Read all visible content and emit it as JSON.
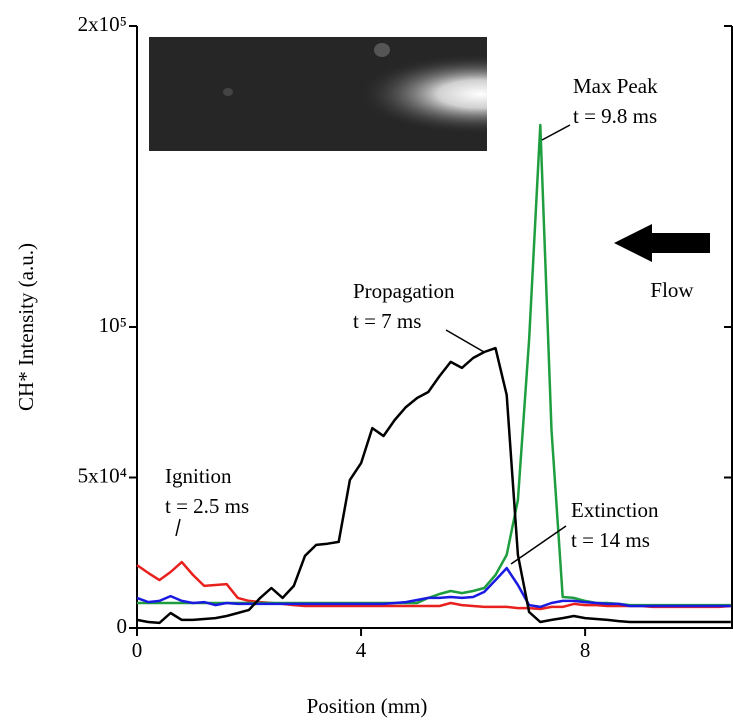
{
  "chart_data": {
    "type": "line",
    "x_label": "Position (mm)",
    "y_label": "CH* Intensity (a.u.)",
    "x": [
      0,
      0.2,
      0.4,
      0.6,
      0.8,
      1.0,
      1.2,
      1.4,
      1.6,
      1.8,
      2.0,
      2.2,
      2.4,
      2.6,
      2.8,
      3.0,
      3.2,
      3.4,
      3.6,
      3.8,
      4.0,
      4.2,
      4.4,
      4.6,
      4.8,
      5.0,
      5.2,
      5.4,
      5.6,
      5.8,
      6.0,
      6.2,
      6.4,
      6.6,
      6.8,
      7.0,
      7.2,
      7.4,
      7.6,
      7.8,
      8.0,
      8.2,
      8.4,
      8.6,
      8.8,
      9.0,
      9.2,
      9.4,
      9.6,
      9.8,
      10.0,
      10.2,
      10.4,
      10.6
    ],
    "series": [
      {
        "color": "#e8211e",
        "values": [
          20900,
          18300,
          15900,
          18600,
          21900,
          17600,
          14000,
          14300,
          14600,
          10000,
          9000,
          8600,
          8300,
          8000,
          7600,
          7300,
          7300,
          7300,
          7300,
          7300,
          7300,
          7300,
          7300,
          7300,
          7300,
          7300,
          7300,
          7300,
          8300,
          7600,
          7300,
          7000,
          7000,
          7000,
          6600,
          6600,
          6300,
          7000,
          7000,
          8000,
          7600,
          7600,
          7300,
          7300,
          7300,
          7300,
          7000,
          7000,
          7000,
          7000,
          7000,
          7000,
          7000,
          7300
        ]
      },
      {
        "color": "#1e9e3e",
        "values": [
          8300,
          8300,
          8300,
          8300,
          8300,
          8300,
          8300,
          8300,
          8300,
          8300,
          8300,
          8300,
          8300,
          8300,
          8300,
          8300,
          8300,
          8300,
          8300,
          8300,
          8300,
          8300,
          8300,
          8300,
          8300,
          8300,
          10000,
          11300,
          12300,
          11600,
          12300,
          13300,
          17600,
          24300,
          42500,
          95700,
          167100,
          65800,
          10300,
          10000,
          9000,
          8300,
          8300,
          8000,
          7600,
          7600,
          7600,
          7600,
          7600,
          7600,
          7600,
          7600,
          7600,
          7600
        ]
      },
      {
        "color": "#1a1ae0",
        "values": [
          10000,
          8600,
          9000,
          10600,
          9000,
          8300,
          8600,
          7600,
          8300,
          8000,
          8000,
          8000,
          8000,
          8000,
          8000,
          8000,
          8000,
          8000,
          8000,
          8000,
          8000,
          8000,
          8000,
          8300,
          8600,
          9300,
          10000,
          10000,
          10300,
          10000,
          10300,
          12000,
          15900,
          19900,
          14300,
          7600,
          7000,
          8300,
          9000,
          9000,
          8600,
          8300,
          8000,
          8000,
          7300,
          7300,
          7300,
          7300,
          7300,
          7300,
          7300,
          7300,
          7300,
          7300
        ]
      },
      {
        "color": "#000000",
        "values": [
          2700,
          2000,
          1700,
          5000,
          2700,
          2700,
          3000,
          3300,
          4000,
          5000,
          6000,
          10000,
          13300,
          10000,
          14000,
          24000,
          27600,
          28000,
          28600,
          49200,
          54800,
          66400,
          63800,
          69100,
          73400,
          76400,
          78400,
          83700,
          88400,
          86400,
          89700,
          91700,
          93000,
          77400,
          24300,
          5300,
          2000,
          2700,
          3300,
          4000,
          3300,
          3000,
          2700,
          2300,
          2000,
          2000,
          2000,
          2000,
          2000,
          2000,
          2000,
          2000,
          2000,
          2000
        ]
      }
    ],
    "xlim": [
      0,
      10.64
    ],
    "ylim": [
      0,
      200000
    ],
    "xticks": [
      0,
      4,
      8
    ],
    "yticks": [
      0,
      {
        "value": 50000,
        "label": "5x10⁴"
      },
      {
        "value": 100000,
        "label": "10⁵"
      },
      {
        "value": 200000,
        "label": "2x10⁵"
      }
    ],
    "annotations": [
      {
        "lines": [
          "Ignition",
          "t = 2.5 ms"
        ]
      },
      {
        "lines": [
          "Propagation",
          "t = 7 ms"
        ]
      },
      {
        "lines": [
          "Max Peak",
          "t = 9.8 ms"
        ]
      },
      {
        "lines": [
          "Extinction",
          "t = 14 ms"
        ]
      },
      {
        "lines": [
          "Flow"
        ]
      }
    ]
  }
}
